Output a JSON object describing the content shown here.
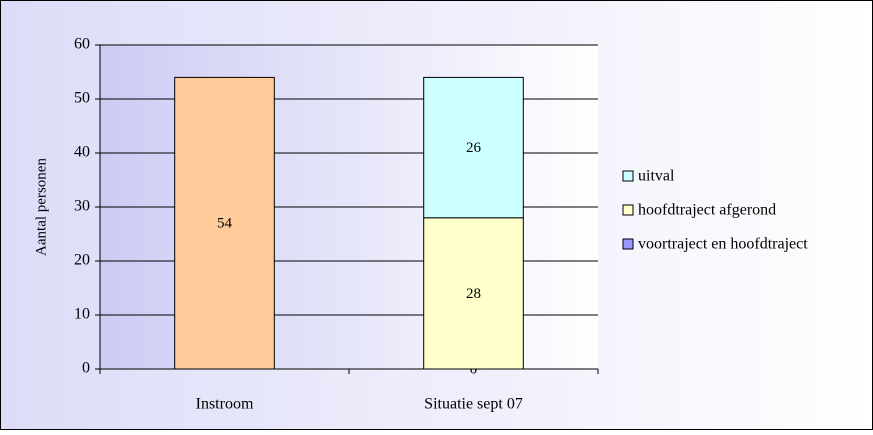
{
  "chart_data": {
    "type": "stacked_bar",
    "y_axis_label": "Aantal personen",
    "categories": [
      "Instroom",
      "Situatie sept 07"
    ],
    "series": [
      {
        "color": "#ffcc99",
        "values": [
          54,
          null
        ]
      },
      {
        "name": "voortraject en hoofdtraject",
        "color": "#9999ff",
        "values": [
          null,
          0
        ]
      },
      {
        "name": "hoofdtraject afgerond",
        "color": "#ffffcc",
        "values": [
          null,
          28
        ]
      },
      {
        "name": "uitval",
        "color": "#ccffff",
        "values": [
          null,
          26
        ]
      }
    ],
    "ylim": [
      0,
      60
    ],
    "yticks": [
      0,
      10,
      20,
      30,
      40,
      50,
      60
    ],
    "grid": true,
    "legend": "right"
  }
}
